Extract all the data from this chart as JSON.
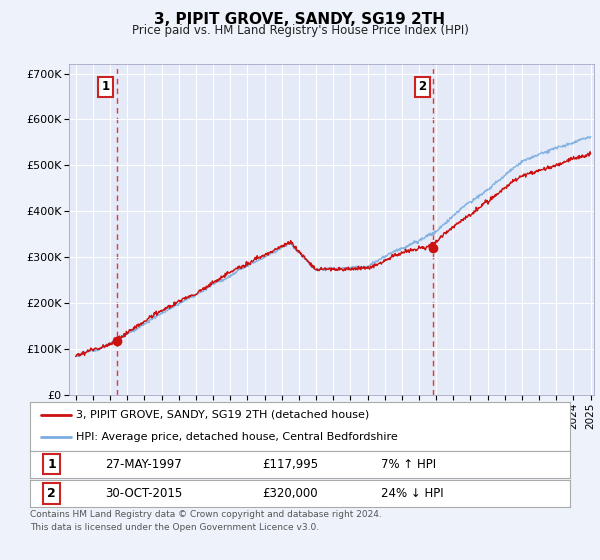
{
  "title": "3, PIPIT GROVE, SANDY, SG19 2TH",
  "subtitle": "Price paid vs. HM Land Registry's House Price Index (HPI)",
  "background_color": "#eef2fa",
  "plot_bg_color": "#e4eaf7",
  "legend_line1": "3, PIPIT GROVE, SANDY, SG19 2TH (detached house)",
  "legend_line2": "HPI: Average price, detached house, Central Bedfordshire",
  "sale1_label": "1",
  "sale1_date": "27-MAY-1997",
  "sale1_price": "£117,995",
  "sale1_hpi": "7% ↑ HPI",
  "sale2_label": "2",
  "sale2_date": "30-OCT-2015",
  "sale2_price": "£320,000",
  "sale2_hpi": "24% ↓ HPI",
  "footer": "Contains HM Land Registry data © Crown copyright and database right 2024.\nThis data is licensed under the Open Government Licence v3.0.",
  "ylim": [
    0,
    720000
  ],
  "sale1_year": 1997.38,
  "sale1_value": 117995,
  "sale2_year": 2015.83,
  "sale2_value": 320000,
  "hpi_color": "#7aade0",
  "price_color": "#cc1111",
  "dashed_color": "#ee3333"
}
